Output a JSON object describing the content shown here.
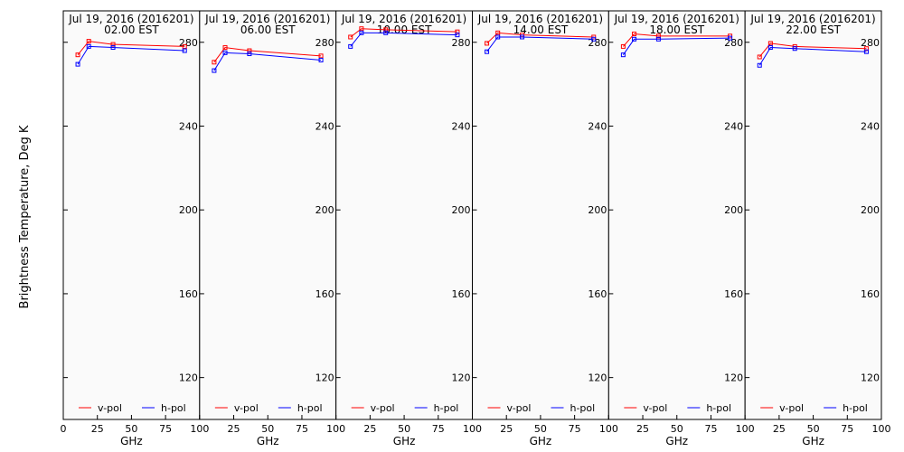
{
  "chart_data": {
    "type": "line",
    "ylabel": "Brightness Temperature, Deg K",
    "xlabel": "GHz",
    "xlim": [
      0,
      100
    ],
    "ylim": [
      100,
      295
    ],
    "x_ticks": [
      "0",
      "25",
      "50",
      "75",
      "100"
    ],
    "y_ticks": [
      "120",
      "160",
      "200",
      "240",
      "280"
    ],
    "grid": false,
    "legend": {
      "placement": "bottom",
      "entries": [
        "v-pol",
        "h-pol"
      ]
    },
    "colors": {
      "v-pol": "#ff0000",
      "h-pol": "#0000ff"
    },
    "panels": [
      {
        "title": "Jul 19, 2016 (2016201)",
        "subtitle": "02.00 EST",
        "x": [
          10.65,
          18.7,
          36.5,
          89.0
        ],
        "series": [
          {
            "name": "v-pol",
            "values": [
              274,
              280.5,
              279,
              278
            ]
          },
          {
            "name": "h-pol",
            "values": [
              269.5,
              278,
              277.5,
              276
            ]
          }
        ]
      },
      {
        "title": "Jul 19, 2016 (2016201)",
        "subtitle": "06.00 EST",
        "x": [
          10.65,
          18.7,
          36.5,
          89.0
        ],
        "series": [
          {
            "name": "v-pol",
            "values": [
              270.5,
              277.5,
              276,
              273.5
            ]
          },
          {
            "name": "h-pol",
            "values": [
              266.5,
              275,
              274.5,
              271.5
            ]
          }
        ]
      },
      {
        "title": "Jul 19, 2016 (2016201)",
        "subtitle": "10.00 EST",
        "x": [
          10.65,
          18.7,
          36.5,
          89.0
        ],
        "series": [
          {
            "name": "v-pol",
            "values": [
              282.5,
              286.5,
              286,
              285
            ]
          },
          {
            "name": "h-pol",
            "values": [
              278,
              284.5,
              284.5,
              283.5
            ]
          }
        ]
      },
      {
        "title": "Jul 19, 2016 (2016201)",
        "subtitle": "14.00 EST",
        "x": [
          10.65,
          18.7,
          36.5,
          89.0
        ],
        "series": [
          {
            "name": "v-pol",
            "values": [
              279.5,
              284.5,
              283.5,
              282.5
            ]
          },
          {
            "name": "h-pol",
            "values": [
              275.5,
              282.5,
              282.5,
              281.5
            ]
          }
        ]
      },
      {
        "title": "Jul 19, 2016 (2016201)",
        "subtitle": "18.00 EST",
        "x": [
          10.65,
          18.7,
          36.5,
          89.0
        ],
        "series": [
          {
            "name": "v-pol",
            "values": [
              278,
              284,
              283,
              283
            ]
          },
          {
            "name": "h-pol",
            "values": [
              274,
              281.5,
              281.5,
              282
            ]
          }
        ]
      },
      {
        "title": "Jul 19, 2016 (2016201)",
        "subtitle": "22.00 EST",
        "x": [
          10.65,
          18.7,
          36.5,
          89.0
        ],
        "series": [
          {
            "name": "v-pol",
            "values": [
              273,
              279.5,
              278,
              277
            ]
          },
          {
            "name": "h-pol",
            "values": [
              269,
              277.5,
              277,
              275.5
            ]
          }
        ]
      }
    ]
  }
}
